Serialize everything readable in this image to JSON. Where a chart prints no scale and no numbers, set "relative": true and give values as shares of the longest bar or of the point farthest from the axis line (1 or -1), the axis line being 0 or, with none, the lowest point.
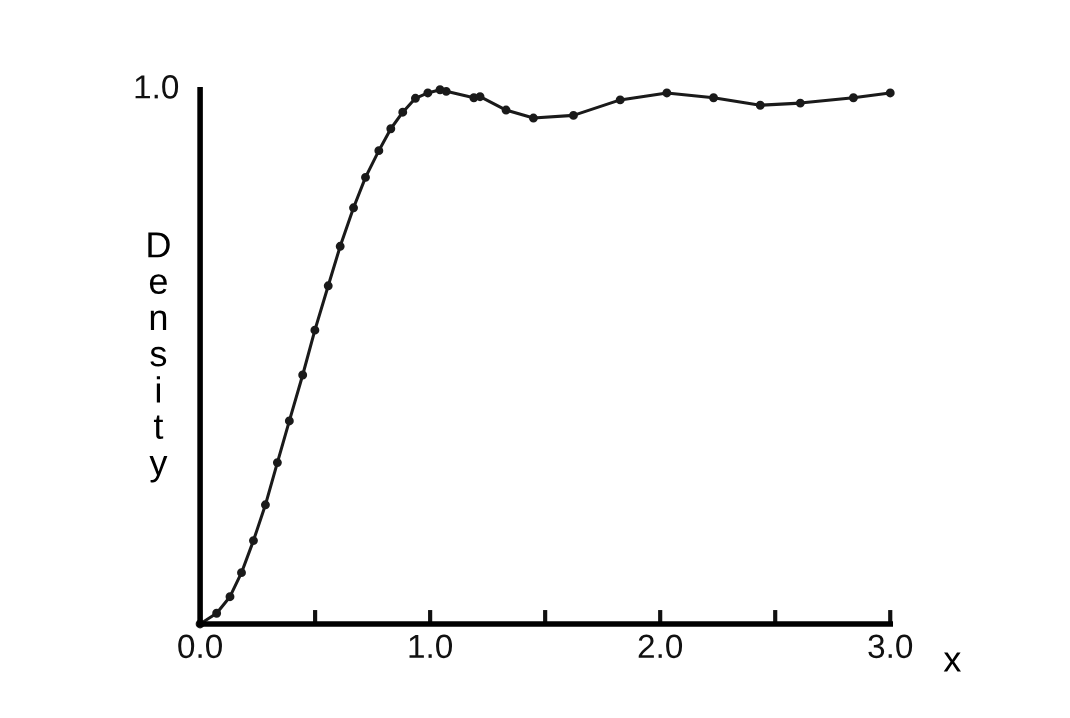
{
  "chart_data": {
    "type": "line",
    "xlabel": "x",
    "ylabel": "Density",
    "relative": true,
    "x": [
      0,
      0.072,
      0.13,
      0.18,
      0.232,
      0.284,
      0.336,
      0.388,
      0.446,
      0.499,
      0.557,
      0.609,
      0.667,
      0.719,
      0.777,
      0.829,
      0.881,
      0.936,
      0.99,
      1.043,
      1.07,
      1.19,
      1.217,
      1.33,
      1.449,
      1.623,
      1.826,
      2.029,
      2.232,
      2.435,
      2.609,
      2.84,
      3.0
    ],
    "series": [
      {
        "color": "#1a1a1a",
        "values": [
          0,
          0.02,
          0.051,
          0.096,
          0.156,
          0.223,
          0.302,
          0.38,
          0.466,
          0.55,
          0.633,
          0.707,
          0.779,
          0.836,
          0.886,
          0.927,
          0.958,
          0.984,
          0.994,
          1,
          0.997,
          0.985,
          0.987,
          0.962,
          0.947,
          0.952,
          0.981,
          0.994,
          0.985,
          0.971,
          0.975,
          0.985,
          0.994
        ]
      }
    ],
    "xlim": [
      0,
      3.0
    ],
    "xticks": [
      {
        "value": 0,
        "label": "0.0"
      },
      {
        "value": 0.5,
        "label": null
      },
      {
        "value": 1.0,
        "label": "1.0"
      },
      {
        "value": 1.5,
        "label": null
      },
      {
        "value": 2.0,
        "label": "2.0"
      },
      {
        "value": 2.5,
        "label": null
      },
      {
        "value": 3.0,
        "label": "3.0"
      }
    ],
    "annotations": [
      "1.0"
    ],
    "marker": "circle",
    "line_style": "solid",
    "grid": false,
    "legend": false
  }
}
